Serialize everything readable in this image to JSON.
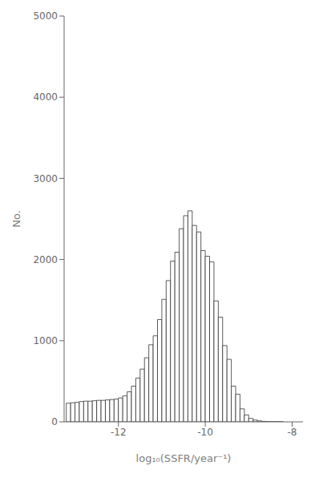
{
  "chart_data": {
    "type": "histogram",
    "xlabel": "log₁₀(SSFR/year⁻¹)",
    "ylabel": "No.",
    "bins": [
      -13.2,
      -13.1,
      -13.0,
      -12.9,
      -12.8,
      -12.7,
      -12.6,
      -12.5,
      -12.4,
      -12.3,
      -12.2,
      -12.1,
      -12.0,
      -11.9,
      -11.8,
      -11.7,
      -11.6,
      -11.5,
      -11.4,
      -11.3,
      -11.2,
      -11.1,
      -11.0,
      -10.9,
      -10.8,
      -10.7,
      -10.6,
      -10.5,
      -10.4,
      -10.3,
      -10.2,
      -10.1,
      -10.0,
      -9.9,
      -9.8,
      -9.7,
      -9.6,
      -9.5,
      -9.4,
      -9.3,
      -9.2,
      -9.1,
      -9.0,
      -8.9,
      -8.8,
      -8.7,
      -8.6,
      -8.5,
      -8.4,
      -8.3,
      -8.2,
      -8.1,
      -8.0
    ],
    "counts": [
      230,
      235,
      240,
      250,
      255,
      255,
      260,
      265,
      265,
      270,
      275,
      280,
      295,
      320,
      370,
      440,
      540,
      650,
      790,
      950,
      1060,
      1260,
      1510,
      1740,
      1980,
      2090,
      2380,
      2540,
      2600,
      2420,
      2340,
      2110,
      2040,
      1970,
      1490,
      1290,
      940,
      770,
      440,
      340,
      160,
      85,
      42,
      22,
      12,
      6,
      3,
      2,
      1,
      1,
      0,
      0
    ],
    "color": "white",
    "xlim": [
      -13.25,
      -7.75
    ],
    "ylim": [
      0,
      5000
    ],
    "xticks": [
      -12,
      -10,
      -8
    ],
    "yticks": [
      0,
      1000,
      2000,
      3000,
      4000,
      5000
    ],
    "grid": false
  }
}
